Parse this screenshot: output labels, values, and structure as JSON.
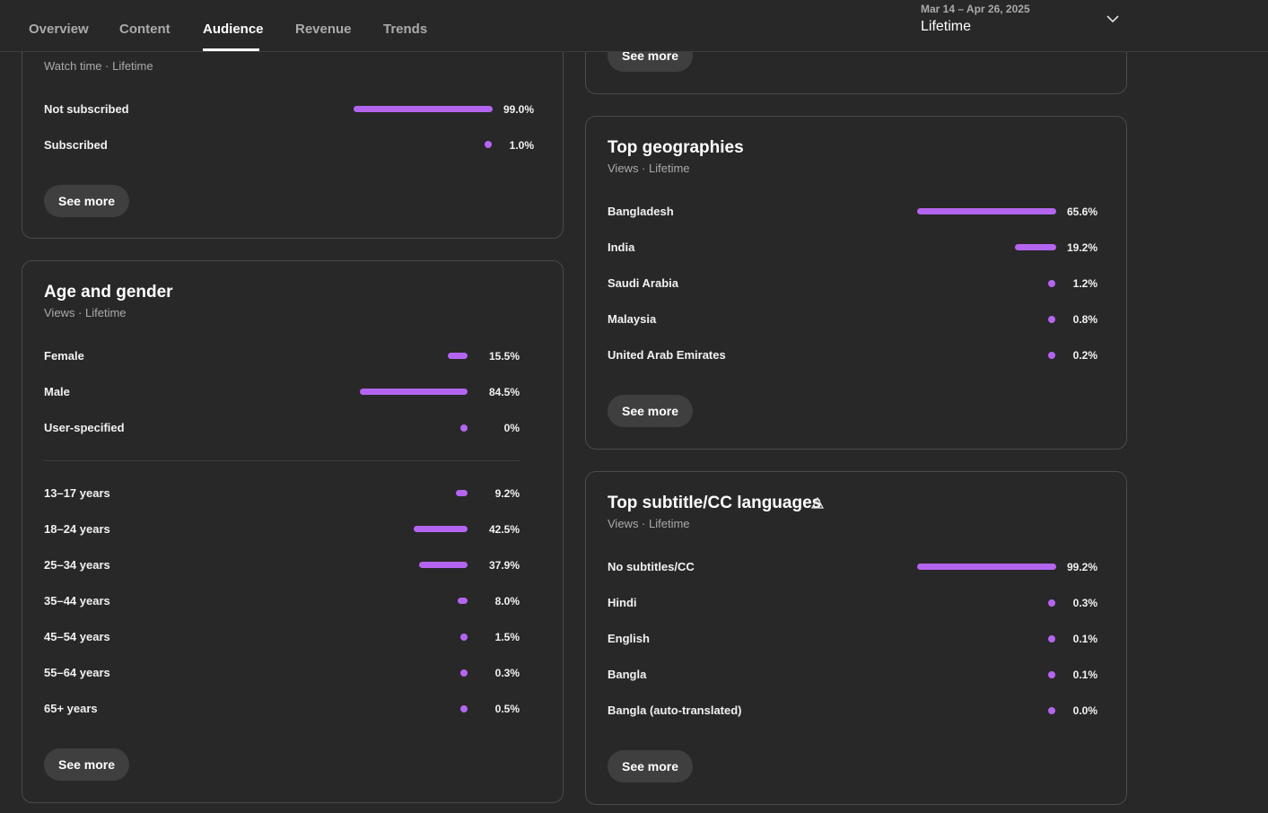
{
  "tabs": [
    {
      "label": "Overview"
    },
    {
      "label": "Content"
    },
    {
      "label": "Audience"
    },
    {
      "label": "Revenue"
    },
    {
      "label": "Trends"
    }
  ],
  "active_tab": "Audience",
  "date_picker": {
    "range": "Mar 14 – Apr 26, 2025",
    "label": "Lifetime"
  },
  "subscription": {
    "subtitle": "Watch time · Lifetime",
    "rows": [
      {
        "label": "Not subscribed",
        "value": "99.0%",
        "share": 0.99
      },
      {
        "label": "Subscribed",
        "value": "1.0%",
        "share": 0.01
      }
    ],
    "see_more": "See more"
  },
  "age_gender": {
    "title": "Age and gender",
    "subtitle": "Views · Lifetime",
    "gender": [
      {
        "label": "Female",
        "value": "15.5%",
        "share": 0.155
      },
      {
        "label": "Male",
        "value": "84.5%",
        "share": 0.845
      },
      {
        "label": "User-specified",
        "value": "0%",
        "share": 0
      }
    ],
    "age": [
      {
        "label": "13–17 years",
        "value": "9.2%",
        "share": 0.092
      },
      {
        "label": "18–24 years",
        "value": "42.5%",
        "share": 0.425
      },
      {
        "label": "25–34 years",
        "value": "37.9%",
        "share": 0.379
      },
      {
        "label": "35–44 years",
        "value": "8.0%",
        "share": 0.08
      },
      {
        "label": "45–54 years",
        "value": "1.5%",
        "share": 0.015
      },
      {
        "label": "55–64 years",
        "value": "0.3%",
        "share": 0.003
      },
      {
        "label": "65+ years",
        "value": "0.5%",
        "share": 0.005
      }
    ],
    "see_more": "See more"
  },
  "top_partial": {
    "see_more": "See more"
  },
  "geographies": {
    "title": "Top geographies",
    "subtitle": "Views · Lifetime",
    "rows": [
      {
        "label": "Bangladesh",
        "value": "65.6%",
        "share": 0.656
      },
      {
        "label": "India",
        "value": "19.2%",
        "share": 0.192
      },
      {
        "label": "Saudi Arabia",
        "value": "1.2%",
        "share": 0.012
      },
      {
        "label": "Malaysia",
        "value": "0.8%",
        "share": 0.008
      },
      {
        "label": "United Arab Emirates",
        "value": "0.2%",
        "share": 0.002
      }
    ],
    "see_more": "See more"
  },
  "subtitles": {
    "title": "Top subtitle/CC languages",
    "subtitle": "Views · Lifetime",
    "rows": [
      {
        "label": "No subtitles/CC",
        "value": "99.2%",
        "share": 0.992
      },
      {
        "label": "Hindi",
        "value": "0.3%",
        "share": 0.003
      },
      {
        "label": "English",
        "value": "0.1%",
        "share": 0.001
      },
      {
        "label": "Bangla",
        "value": "0.1%",
        "share": 0.001
      },
      {
        "label": "Bangla (auto-translated)",
        "value": "0.0%",
        "share": 0.0
      }
    ],
    "see_more": "See more"
  },
  "colors": {
    "accent": "#b465f0",
    "background": "#282828",
    "card_border": "#4a4a4a"
  },
  "icons": {
    "date_picker": "chevron-down-icon",
    "subtitles_warning": "warning-icon"
  }
}
